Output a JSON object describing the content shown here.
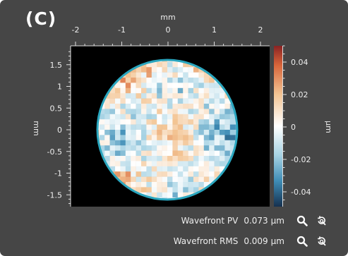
{
  "panel": {
    "label": "(C)"
  },
  "plot": {
    "x_axis": {
      "label": "mm",
      "ticks": [
        "-2",
        "-1",
        "0",
        "1",
        "2"
      ]
    },
    "y_axis": {
      "label": "mm",
      "ticks": [
        "1.5",
        "1",
        "0.5",
        "0",
        "-0.5",
        "-1",
        "-1.5"
      ]
    },
    "colorbar": {
      "label": "µm",
      "ticks": [
        "0.04",
        "0.02",
        "0",
        "-0.02",
        "-0.04"
      ],
      "colors": {
        "high": "#8a2323",
        "mid": "#ffffff",
        "low": "#15304f"
      }
    },
    "aperture_color": "#2aa6bf"
  },
  "readouts": {
    "pv": {
      "label": "Wavefront PV",
      "value": "0.073",
      "unit": "µm"
    },
    "rms": {
      "label": "Wavefront RMS",
      "value": "0.009",
      "unit": "µm"
    }
  },
  "icons": {
    "zoom": "magnifier-icon",
    "reset": "zoom-reset-icon"
  }
}
